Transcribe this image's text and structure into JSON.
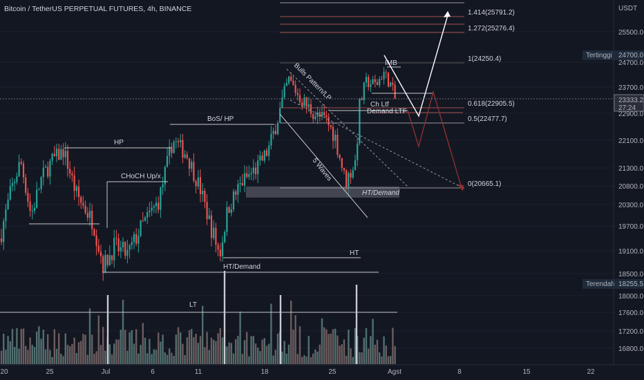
{
  "header": {
    "symbol": "Bitcoin / TetherUS PERPETUAL FUTURES, 4h, BINANCE",
    "currency": "USDT"
  },
  "colors": {
    "background": "#131722",
    "up": "#26a69a",
    "down": "#ef5350",
    "fib_red": "#a05050",
    "projection_white": "#ffffff",
    "projection_red": "#8b3030",
    "volume_bar": "#5a5d66",
    "zone": "#6b6e78"
  },
  "chart_data": {
    "type": "candlestick",
    "price_axis": {
      "labels": [
        "25500.0",
        "24700.0",
        "23700.0",
        "22900.0",
        "22100.0",
        "21300.0",
        "20800.0",
        "20300.0",
        "19700.0",
        "19100.0",
        "18500.0",
        "18000.0",
        "17600.0",
        "17200.0",
        "16800.0"
      ],
      "values": [
        25500,
        24700,
        23700,
        22900,
        22100,
        21300,
        20800,
        20300,
        19700,
        19100,
        18500,
        18000,
        17600,
        17200,
        16800
      ],
      "scale": "log"
    },
    "time_axis": [
      "20",
      "25",
      "Jul",
      "6",
      "11",
      "18",
      "25",
      "Agst",
      "8",
      "15",
      "22"
    ],
    "current_price": {
      "value": "23333.2",
      "countdown": "27:24"
    },
    "highest": {
      "label": "Tertinggi",
      "value": "24700.0"
    },
    "lowest": {
      "label": "Terendah",
      "value": "18255.5"
    },
    "fibonacci": [
      {
        "label": "1.414(25791.2)",
        "value": 25791.2
      },
      {
        "label": "1.272(25276.4)",
        "value": 25276.4
      },
      {
        "label": "1(24250.4)",
        "value": 24250.4
      },
      {
        "label": "0.618(22905.5)",
        "value": 22905.5
      },
      {
        "label": "0.5(22477.7)",
        "value": 22477.7
      },
      {
        "label": "0(20665.1)",
        "value": 20665.1
      }
    ],
    "annotations": [
      "HP",
      "CHoCH Up/x",
      "BoS/ HP",
      "Bulls Pattern/LP",
      "5 Waves",
      "HT/Demand",
      "HT",
      "HT/Demand",
      "LT",
      "IMB",
      "Ch Ltf",
      "Demand LTF"
    ],
    "series": [
      {
        "name": "price",
        "description": "4h candles late Jun to early Aug"
      },
      {
        "name": "volume"
      }
    ]
  }
}
